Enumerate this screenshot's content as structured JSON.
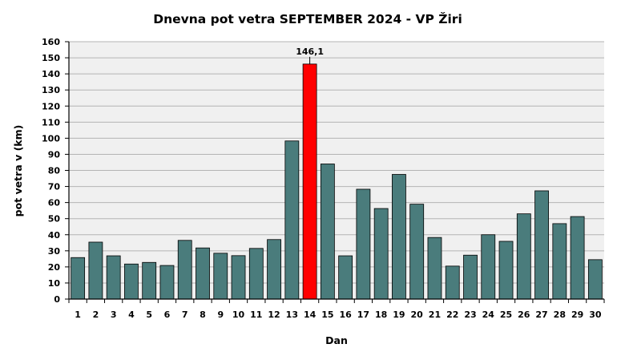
{
  "chart_data": {
    "type": "bar",
    "title": "Dnevna pot vetra SEPTEMBER 2024 - VP Žiri",
    "xlabel": "Dan",
    "ylabel": "pot vetra  v (km)",
    "ylim": [
      0,
      160
    ],
    "ytick_step": 10,
    "grid": true,
    "categories": [
      "1",
      "2",
      "3",
      "4",
      "5",
      "6",
      "7",
      "8",
      "9",
      "10",
      "11",
      "12",
      "13",
      "14",
      "15",
      "16",
      "17",
      "18",
      "19",
      "20",
      "21",
      "22",
      "23",
      "24",
      "25",
      "26",
      "27",
      "28",
      "29",
      "30"
    ],
    "values": [
      25.8,
      35.4,
      26.9,
      21.8,
      22.8,
      20.9,
      36.5,
      31.8,
      28.5,
      27.0,
      31.5,
      37.0,
      98.3,
      146.1,
      84.0,
      26.9,
      68.3,
      56.3,
      77.5,
      59.0,
      38.3,
      20.5,
      27.3,
      40.0,
      35.9,
      53.0,
      67.3,
      46.9,
      51.3,
      24.5
    ],
    "bar_color": "#4a7c7c",
    "highlight": {
      "index": 13,
      "color": "#ff0000",
      "label": "146,1"
    }
  }
}
